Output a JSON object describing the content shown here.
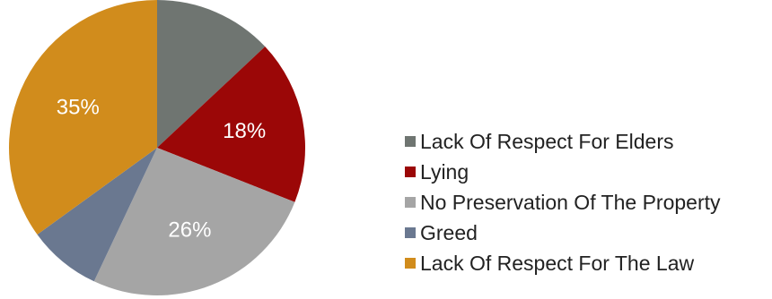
{
  "chart_data": {
    "type": "pie",
    "title": "",
    "legend_position": "right",
    "start_angle_deg": 0,
    "direction": "clockwise",
    "slices": [
      {
        "name": "Lack Of Respect For Elders",
        "value": 13,
        "label": "",
        "color": "#6f7571"
      },
      {
        "name": "Lying",
        "value": 18,
        "label": "18%",
        "color": "#9b0707"
      },
      {
        "name": "No Preservation Of The Property",
        "value": 26,
        "label": "26%",
        "color": "#a5a5a5"
      },
      {
        "name": "Greed",
        "value": 8,
        "label": "",
        "color": "#6a7890"
      },
      {
        "name": "Lack Of Respect For The Law",
        "value": 35,
        "label": "35%",
        "color": "#d18c1c"
      }
    ]
  }
}
